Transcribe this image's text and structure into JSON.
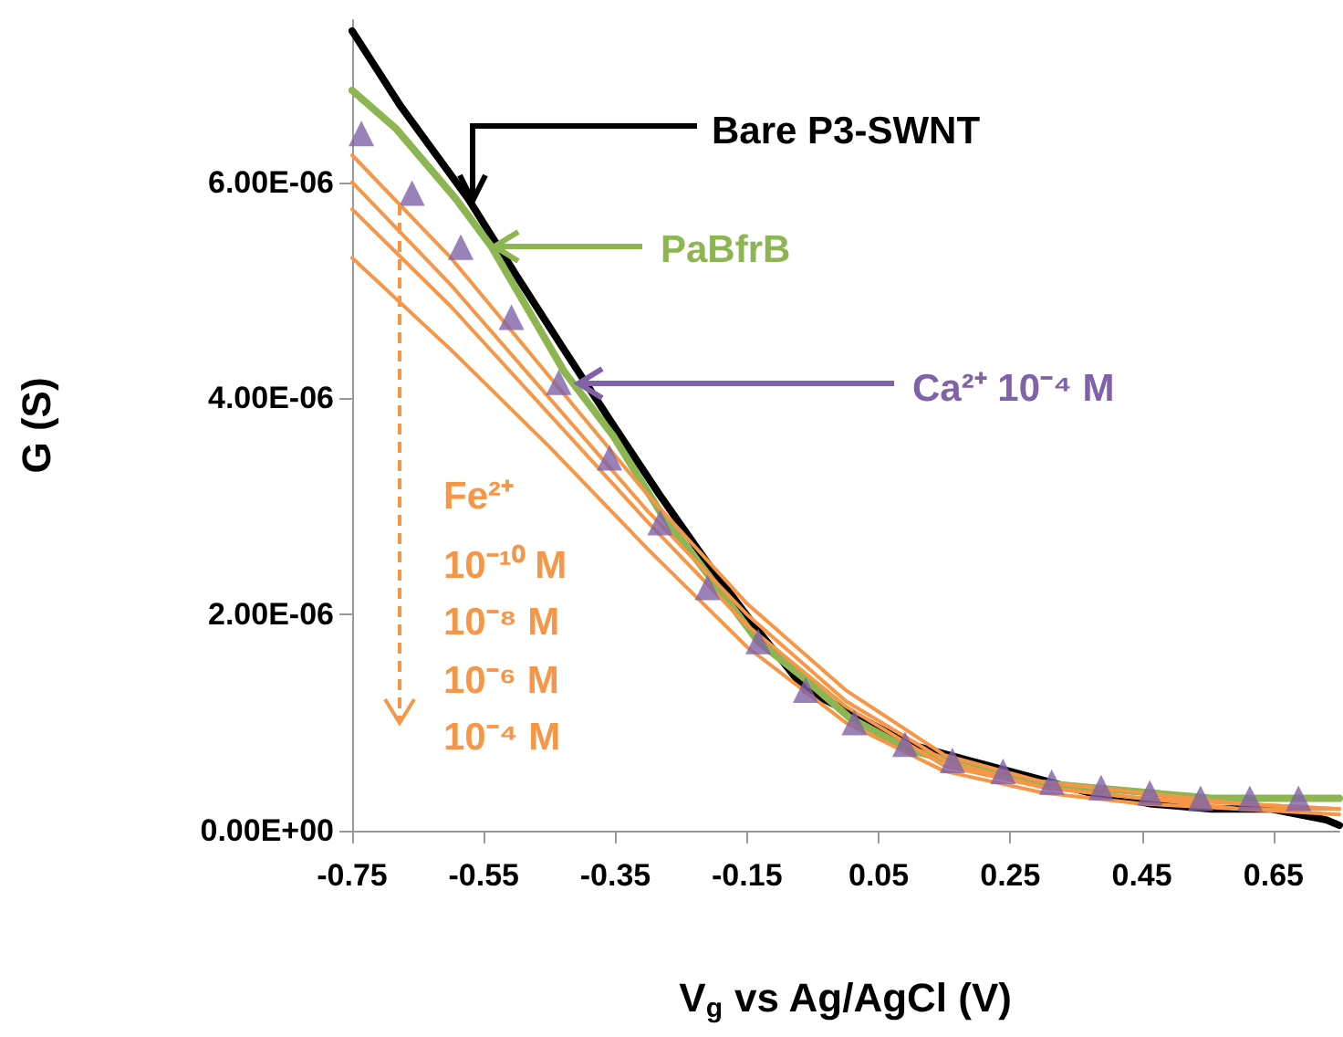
{
  "chart_data": {
    "type": "line",
    "xlabel": "V$_{g}$ vs Ag/AgCl (V)",
    "ylabel": "G (S)",
    "xlim": [
      -0.75,
      0.75
    ],
    "xticks": [
      -0.75,
      -0.55,
      -0.35,
      -0.15,
      0.05,
      0.25,
      0.45,
      0.65
    ],
    "ylim": [
      0,
      7.5e-06
    ],
    "yticks": [
      {
        "value": 0,
        "label": "0.00E+00"
      },
      {
        "value": 2e-06,
        "label": "2.00E-06"
      },
      {
        "value": 4e-06,
        "label": "4.00E-06"
      },
      {
        "value": 6e-06,
        "label": "6.00E-06"
      }
    ],
    "legend": "left",
    "grid": false,
    "marker": "none",
    "annotations": [
      "Fe²⁺"
    ],
    "series": [
      {
        "name": "Bare P3-SWNT",
        "color": "#000000",
        "x": [
          -0.75,
          -0.676,
          -0.574,
          -0.502,
          -0.428,
          -0.353,
          -0.282,
          -0.207,
          -0.133,
          -0.061,
          0.005,
          0.096,
          0.187,
          0.28,
          0.371,
          0.462,
          0.556,
          0.647,
          0.73,
          0.75
        ],
        "values": [
          7.4e-06,
          6.7e-06,
          5.85e-06,
          5.15e-06,
          4.45e-06,
          3.75e-06,
          3.1e-06,
          2.45e-06,
          1.85e-06,
          1.3e-06,
          1.1e-06,
          8e-07,
          6.5e-07,
          5e-07,
          3.5e-07,
          2.5e-07,
          2e-07,
          2e-07,
          1e-07,
          5e-08
        ]
      },
      {
        "name": "PaBfrB",
        "color": "#8db552",
        "x": [
          -0.75,
          -0.684,
          -0.593,
          -0.538,
          -0.428,
          -0.353,
          -0.282,
          -0.207,
          -0.133,
          -0.061,
          0.005,
          0.096,
          0.187,
          0.28,
          0.371,
          0.462,
          0.556,
          0.647,
          0.75
        ],
        "values": [
          6.85e-06,
          6.5e-06,
          5.85e-06,
          5.4e-06,
          4.25e-06,
          3.65e-06,
          2.95e-06,
          2.35e-06,
          1.75e-06,
          1.4e-06,
          1.05e-06,
          7.5e-07,
          6e-07,
          4.5e-07,
          4e-07,
          3.5e-07,
          3e-07,
          3e-07,
          3e-07
        ]
      },
      {
        "name": "Ca²⁺ 10⁻⁴ M",
        "color": "#7f62a8",
        "type": "scatter",
        "marker": "triangle",
        "x": [
          -0.736,
          -0.659,
          -0.585,
          -0.508,
          -0.436,
          -0.359,
          -0.282,
          -0.21,
          -0.133,
          -0.061,
          0.013,
          0.09,
          0.162,
          0.239,
          0.313,
          0.388,
          0.462,
          0.539,
          0.614,
          0.688
        ],
        "values": [
          6.45e-06,
          5.9e-06,
          5.4e-06,
          4.75e-06,
          4.15e-06,
          3.45e-06,
          2.85e-06,
          2.25e-06,
          1.75e-06,
          1.3e-06,
          1e-06,
          8e-07,
          6.5e-07,
          5.5e-07,
          4.5e-07,
          4e-07,
          3.5e-07,
          3e-07,
          3e-07,
          3e-07
        ]
      },
      {
        "name": "10⁻¹⁰ M",
        "color": "#f79646",
        "x": [
          -0.75,
          -0.6,
          -0.45,
          -0.3,
          -0.15,
          0,
          0.15,
          0.3,
          0.45,
          0.6,
          0.75
        ],
        "values": [
          6.25e-06,
          5.3e-06,
          4.2e-06,
          3.1e-06,
          2.1e-06,
          1.3e-06,
          7e-07,
          4.5e-07,
          3.5e-07,
          2.5e-07,
          2e-07
        ]
      },
      {
        "name": "10⁻⁸ M",
        "color": "#f79646",
        "x": [
          -0.75,
          -0.6,
          -0.45,
          -0.3,
          -0.15,
          0,
          0.15,
          0.3,
          0.45,
          0.6,
          0.75
        ],
        "values": [
          6e-06,
          5.05e-06,
          4e-06,
          2.95e-06,
          2e-06,
          1.2e-06,
          6.5e-07,
          4e-07,
          3e-07,
          2.5e-07,
          2e-07
        ]
      },
      {
        "name": "10⁻⁶ M",
        "color": "#f79646",
        "x": [
          -0.75,
          -0.6,
          -0.45,
          -0.3,
          -0.15,
          0,
          0.15,
          0.3,
          0.45,
          0.6,
          0.75
        ],
        "values": [
          5.75e-06,
          4.85e-06,
          3.85e-06,
          2.85e-06,
          1.9e-06,
          1.15e-06,
          6e-07,
          4e-07,
          3e-07,
          2e-07,
          2e-07
        ]
      },
      {
        "name": "10⁻⁴ M",
        "color": "#f79646",
        "x": [
          -0.75,
          -0.6,
          -0.45,
          -0.3,
          -0.15,
          0,
          0.15,
          0.3,
          0.45,
          0.6,
          0.75
        ],
        "values": [
          5.3e-06,
          4.45e-06,
          3.55e-06,
          2.6e-06,
          1.7e-06,
          1e-06,
          5.5e-07,
          3.5e-07,
          2.5e-07,
          2e-07,
          1.5e-07
        ]
      }
    ]
  }
}
